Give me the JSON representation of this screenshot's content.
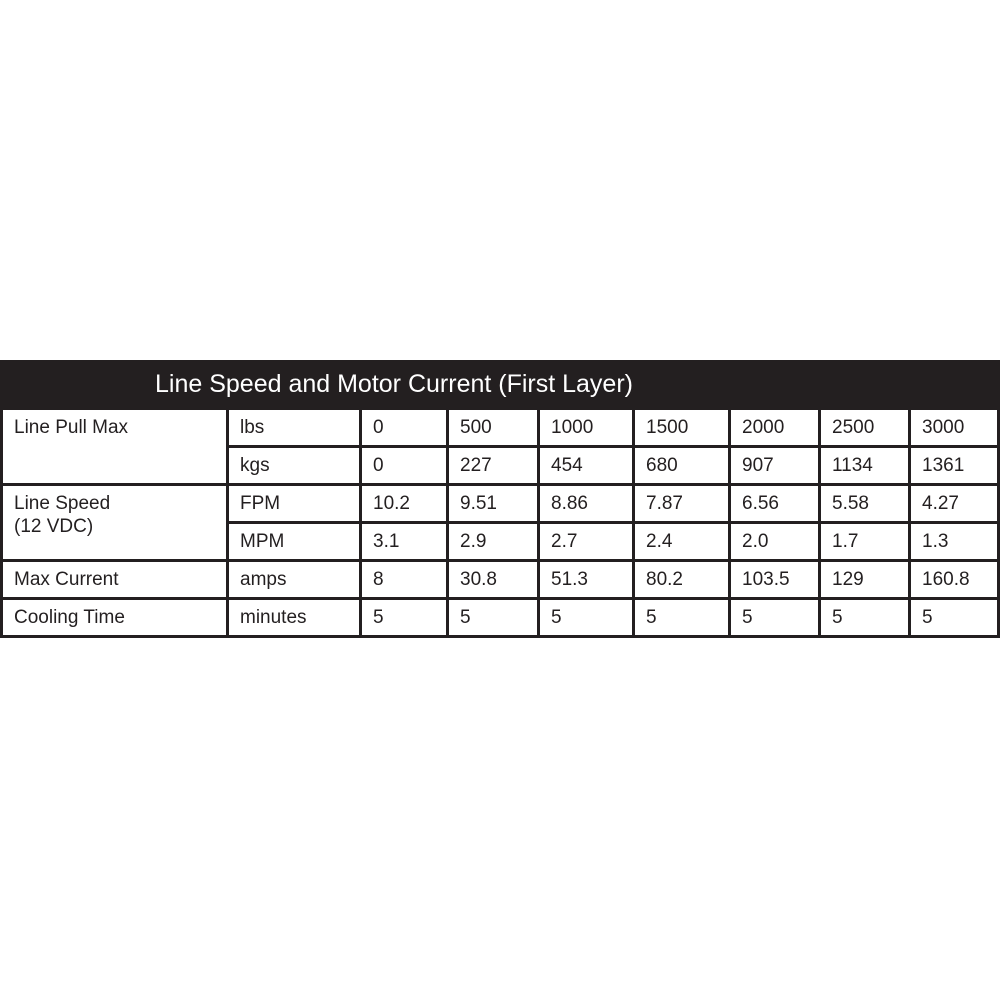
{
  "title": "Line Speed and Motor Current (First Layer)",
  "colors": {
    "border": "#231f20",
    "header_bg": "#231f20",
    "header_text": "#ffffff"
  },
  "groups": [
    {
      "label": "Line Pull Max",
      "rows": [
        {
          "unit": "lbs",
          "values": [
            "0",
            "500",
            "1000",
            "1500",
            "2000",
            "2500",
            "3000"
          ]
        },
        {
          "unit": "kgs",
          "values": [
            "0",
            "227",
            "454",
            "680",
            "907",
            "1134",
            "1361"
          ]
        }
      ]
    },
    {
      "label": "Line Speed",
      "label2": "(12 VDC)",
      "rows": [
        {
          "unit": "FPM",
          "values": [
            "10.2",
            "9.51",
            "8.86",
            "7.87",
            "6.56",
            "5.58",
            "4.27"
          ]
        },
        {
          "unit": "MPM",
          "values": [
            "3.1",
            "2.9",
            "2.7",
            "2.4",
            "2.0",
            "1.7",
            "1.3"
          ]
        }
      ]
    },
    {
      "label": "Max Current",
      "rows": [
        {
          "unit": "amps",
          "values": [
            "8",
            "30.8",
            "51.3",
            "80.2",
            "103.5",
            "129",
            "160.8"
          ]
        }
      ]
    },
    {
      "label": "Cooling Time",
      "rows": [
        {
          "unit": "minutes",
          "values": [
            "5",
            "5",
            "5",
            "5",
            "5",
            "5",
            "5"
          ]
        }
      ]
    }
  ]
}
